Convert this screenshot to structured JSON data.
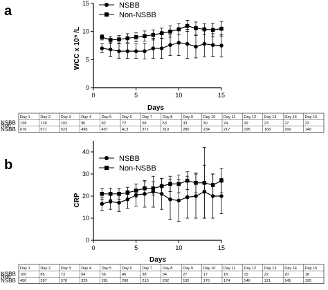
{
  "figure": {
    "panels": [
      {
        "letter": "a",
        "ylabel": "WCC x 10⁹ /L",
        "xlabel": "Days",
        "legend": [
          "NSBB",
          "Non-NSBB"
        ],
        "table": {
          "days": [
            "Day 1",
            "Day 2",
            "Day 3",
            "Day 4",
            "Day 5",
            "Day 6",
            "Day 7",
            "Day 8",
            "Day 9",
            "Day 10",
            "Day 11",
            "Day 12",
            "Day 13",
            "Day 14",
            "Day 15"
          ],
          "rows": [
            {
              "label_lines": [
                "NSBB"
              ],
              "counts": [
                "138",
                "120",
                "102",
                "90",
                "82",
                "72",
                "58",
                "53",
                "33",
                "30",
                "24",
                "29",
                "23",
                "27",
                "23"
              ]
            },
            {
              "label_lines": [
                "Non",
                "NSBB"
              ],
              "counts": [
                "676",
                "571",
                "523",
                "498",
                "457",
                "413",
                "371",
                "310",
                "280",
                "234",
                "217",
                "195",
                "168",
                "166",
                "140"
              ]
            }
          ]
        }
      },
      {
        "letter": "b",
        "ylabel": "CRP",
        "xlabel": "Days",
        "legend": [
          "NSBB",
          "Non-NSBB"
        ],
        "table": {
          "days": [
            "Day 1",
            "Day 2",
            "Day 3",
            "Day 4",
            "Day 5",
            "Day 6",
            "Day 7",
            "Day 8",
            "Day 9",
            "Day 10",
            "Day 11",
            "Day 12",
            "Day 13",
            "Day 14",
            "Day 15"
          ],
          "rows": [
            {
              "label_lines": [
                "NSBB"
              ],
              "counts": [
                "100",
                "85",
                "73",
                "64",
                "56",
                "46",
                "38",
                "34",
                "27",
                "17",
                "18",
                "15",
                "22",
                "20",
                "18"
              ]
            },
            {
              "label_lines": [
                "Non",
                "NSBB"
              ],
              "counts": [
                "450",
                "397",
                "370",
                "329",
                "281",
                "260",
                "213",
                "202",
                "195",
                "170",
                "174",
                "146",
                "121",
                "145",
                "120"
              ]
            }
          ]
        }
      }
    ]
  },
  "chart_data": [
    {
      "type": "line",
      "xlabel": "Days",
      "ylabel": "WCC x 10⁹ /L",
      "xlim": [
        0,
        15
      ],
      "ylim": [
        0,
        15
      ],
      "xticks": [
        0,
        5,
        10,
        15
      ],
      "yticks": [
        0,
        5,
        10,
        15
      ],
      "x": [
        1,
        2,
        3,
        4,
        5,
        6,
        7,
        8,
        9,
        10,
        11,
        12,
        13,
        14,
        15
      ],
      "series": [
        {
          "name": "NSBB",
          "marker": "circle",
          "values": [
            7.0,
            6.8,
            6.5,
            6.5,
            6.5,
            6.5,
            7.0,
            7.0,
            7.6,
            8.0,
            7.8,
            7.3,
            7.8,
            7.6,
            7.5
          ],
          "errors": [
            0.8,
            1.2,
            1.3,
            1.3,
            1.3,
            1.4,
            1.8,
            1.8,
            1.9,
            2.3,
            2.6,
            2.0,
            2.3,
            2.0,
            2.0
          ]
        },
        {
          "name": "Non-NSBB",
          "marker": "square",
          "values": [
            9.0,
            8.5,
            8.6,
            8.8,
            9.0,
            9.2,
            9.4,
            9.7,
            10.0,
            10.4,
            11.0,
            10.6,
            10.4,
            10.3,
            10.5
          ],
          "errors": [
            0.5,
            0.6,
            0.7,
            0.8,
            0.8,
            0.9,
            0.9,
            0.9,
            1.0,
            1.0,
            1.0,
            1.1,
            1.0,
            1.2,
            1.3
          ]
        }
      ],
      "legend": "top-left",
      "grid": false
    },
    {
      "type": "line",
      "xlabel": "Days",
      "ylabel": "CRP",
      "xlim": [
        0,
        15
      ],
      "ylim": [
        0,
        45
      ],
      "xticks": [
        0,
        5,
        10,
        15
      ],
      "yticks": [
        0,
        10,
        20,
        30,
        40
      ],
      "x": [
        1,
        2,
        3,
        4,
        5,
        6,
        7,
        8,
        9,
        10,
        11,
        12,
        13,
        14,
        15
      ],
      "series": [
        {
          "name": "NSBB",
          "marker": "circle",
          "values": [
            16.5,
            17.5,
            17.0,
            18.5,
            20.5,
            21.0,
            22.0,
            21.0,
            18.5,
            18.0,
            19.5,
            20.0,
            22.0,
            20.0,
            20.0
          ],
          "errors": [
            3.0,
            3.5,
            4.0,
            4.0,
            5.0,
            6.0,
            7.0,
            7.0,
            9.0,
            9.5,
            9.5,
            10.0,
            12.0,
            10.0,
            8.0
          ]
        },
        {
          "name": "Non-NSBB",
          "marker": "square",
          "values": [
            21.0,
            21.0,
            21.0,
            21.5,
            22.5,
            23.5,
            23.5,
            24.5,
            25.5,
            25.5,
            27.0,
            26.0,
            26.0,
            25.0,
            27.0
          ],
          "errors": [
            2.5,
            2.5,
            2.5,
            2.5,
            3.0,
            3.0,
            3.0,
            3.5,
            3.5,
            4.0,
            4.0,
            4.5,
            16.0,
            5.0,
            5.5
          ]
        }
      ],
      "legend": "top-left",
      "grid": false
    }
  ]
}
